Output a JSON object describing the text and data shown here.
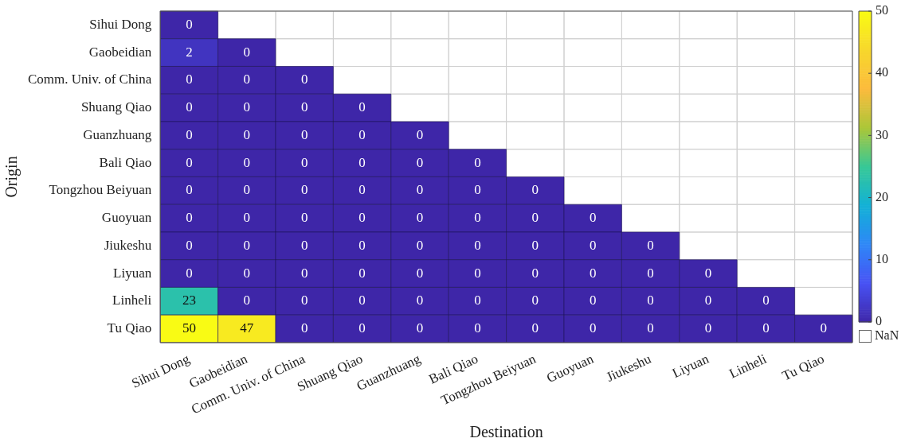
{
  "chart_data": {
    "type": "heatmap",
    "xlabel": "Destination",
    "ylabel": "Origin",
    "categories": [
      "Sihui Dong",
      "Gaobeidian",
      "Comm. Univ. of China",
      "Shuang Qiao",
      "Guanzhuang",
      "Bali Qiao",
      "Tongzhou Beiyuan",
      "Guoyuan",
      "Jiukeshu",
      "Liyuan",
      "Linheli",
      "Tu Qiao"
    ],
    "y_categories": [
      "Sihui Dong",
      "Gaobeidian",
      "Comm. Univ. of China",
      "Shuang Qiao",
      "Guanzhuang",
      "Bali Qiao",
      "Tongzhou Beiyuan",
      "Guoyuan",
      "Jiukeshu",
      "Liyuan",
      "Linheli",
      "Tu Qiao"
    ],
    "cells": [
      [
        0,
        null,
        null,
        null,
        null,
        null,
        null,
        null,
        null,
        null,
        null,
        null
      ],
      [
        2,
        0,
        null,
        null,
        null,
        null,
        null,
        null,
        null,
        null,
        null,
        null
      ],
      [
        0,
        0,
        0,
        null,
        null,
        null,
        null,
        null,
        null,
        null,
        null,
        null
      ],
      [
        0,
        0,
        0,
        0,
        null,
        null,
        null,
        null,
        null,
        null,
        null,
        null
      ],
      [
        0,
        0,
        0,
        0,
        0,
        null,
        null,
        null,
        null,
        null,
        null,
        null
      ],
      [
        0,
        0,
        0,
        0,
        0,
        0,
        null,
        null,
        null,
        null,
        null,
        null
      ],
      [
        0,
        0,
        0,
        0,
        0,
        0,
        0,
        null,
        null,
        null,
        null,
        null
      ],
      [
        0,
        0,
        0,
        0,
        0,
        0,
        0,
        0,
        null,
        null,
        null,
        null
      ],
      [
        0,
        0,
        0,
        0,
        0,
        0,
        0,
        0,
        0,
        null,
        null,
        null
      ],
      [
        0,
        0,
        0,
        0,
        0,
        0,
        0,
        0,
        0,
        0,
        null,
        null
      ],
      [
        23,
        0,
        0,
        0,
        0,
        0,
        0,
        0,
        0,
        0,
        0,
        null
      ],
      [
        50,
        47,
        0,
        0,
        0,
        0,
        0,
        0,
        0,
        0,
        0,
        0
      ]
    ],
    "data_labels": true,
    "clim": [
      0,
      50
    ],
    "cticks": [
      0,
      10,
      20,
      30,
      40,
      50
    ],
    "annotations": [
      "NaN"
    ]
  }
}
